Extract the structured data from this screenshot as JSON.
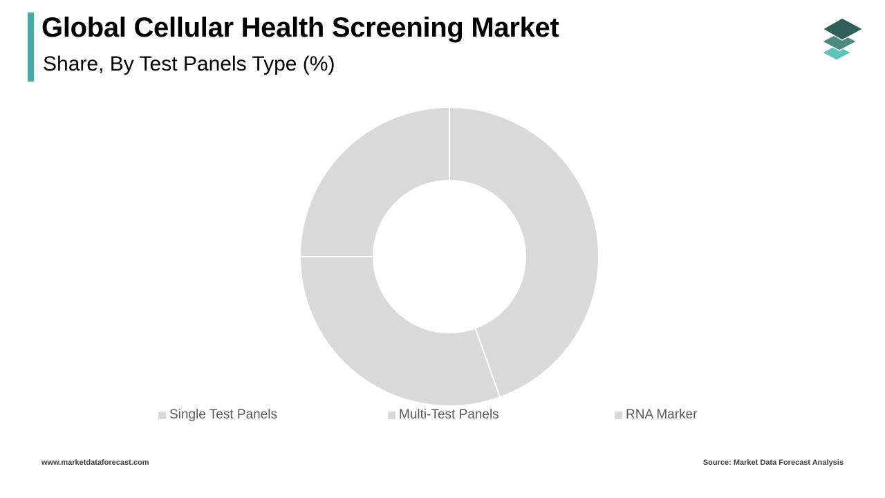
{
  "header": {
    "title": "Global Cellular Health Screening Market",
    "subtitle": "Share, By Test Panels Type (%)"
  },
  "colors": {
    "accent": "#4aaba6",
    "slice": "#d9d9d9",
    "separator": "#ffffff",
    "logo_top": "#2f5f58",
    "logo_mid": "#4b8a80",
    "logo_bottom": "#5cc4bc"
  },
  "icons": {
    "logo": "stacked-layers-icon"
  },
  "chart_data": {
    "type": "pie",
    "variant": "donut",
    "title": "",
    "categories": [
      "Single Test Panels",
      "Multi-Test Panels",
      "RNA Marker"
    ],
    "values": [
      44.5,
      30.5,
      25.0
    ],
    "unit": "%",
    "data_labels_shown": false,
    "legend": "bottom"
  },
  "footer": {
    "website": "www.marketdataforecast.com",
    "source": "Source: Market Data Forecast Analysis"
  }
}
